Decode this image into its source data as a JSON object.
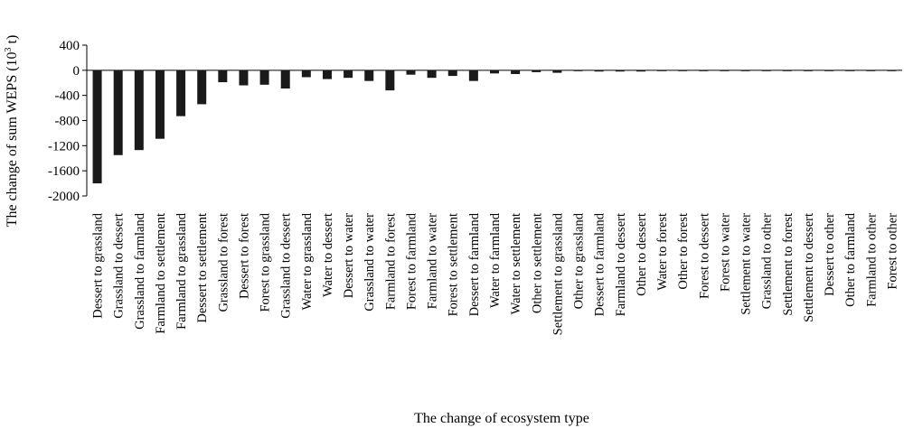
{
  "chart_data": {
    "type": "bar",
    "xlabel": "The change of ecosystem type",
    "ylabel": "The change of sum WEPS (10",
    "ylabel_sup": "3",
    "ylabel_tail": " t)",
    "ylim": [
      -2000,
      400
    ],
    "yticks": [
      400,
      0,
      -400,
      -800,
      -1200,
      -1600,
      -2000
    ],
    "grid": false,
    "bar_color": "#1a1a1a",
    "categories": [
      "Dessert to grassland",
      "Grassland to dessert",
      "Grassland to farmland",
      "Farmland to settlement",
      "Farmland to grassland",
      "Dessert to settlement",
      "Grassland to forest",
      "Dessert to forest",
      "Forest to grassland",
      "Grassland to dessert",
      "Water to grassland",
      "Water to dessert",
      "Dessert to water",
      "Grassland to water",
      "Farmland to forest",
      "Forest to farmland",
      "Farmland to water",
      "Forest to settlement",
      "Dessert to farmland",
      "Water to farmland",
      "Water to settlement",
      "Other to settlement",
      "Settlement to grassland",
      "Other to grassland",
      "Dessert to farmland",
      "Farmland to dessert",
      "Other to dessert",
      "Water to forest",
      "Other to forest",
      "Forest to dessert",
      "Forest to water",
      "Settlement to water",
      "Grassland to other",
      "Settlement to forest",
      "Settlement to dessert",
      "Dessert to other",
      "Other to farmland",
      "Farmland to other",
      "Forest to other"
    ],
    "values": [
      -1800,
      -1350,
      -1270,
      -1090,
      -730,
      -540,
      -190,
      -240,
      -230,
      -290,
      -110,
      -140,
      -120,
      -170,
      -320,
      -70,
      -120,
      -90,
      -170,
      -50,
      -60,
      -30,
      -40,
      -2,
      -20,
      -20,
      -20,
      -3,
      -2,
      -2,
      -2,
      -2,
      -2,
      -2,
      -2,
      -2,
      -2,
      -2,
      -2
    ]
  }
}
